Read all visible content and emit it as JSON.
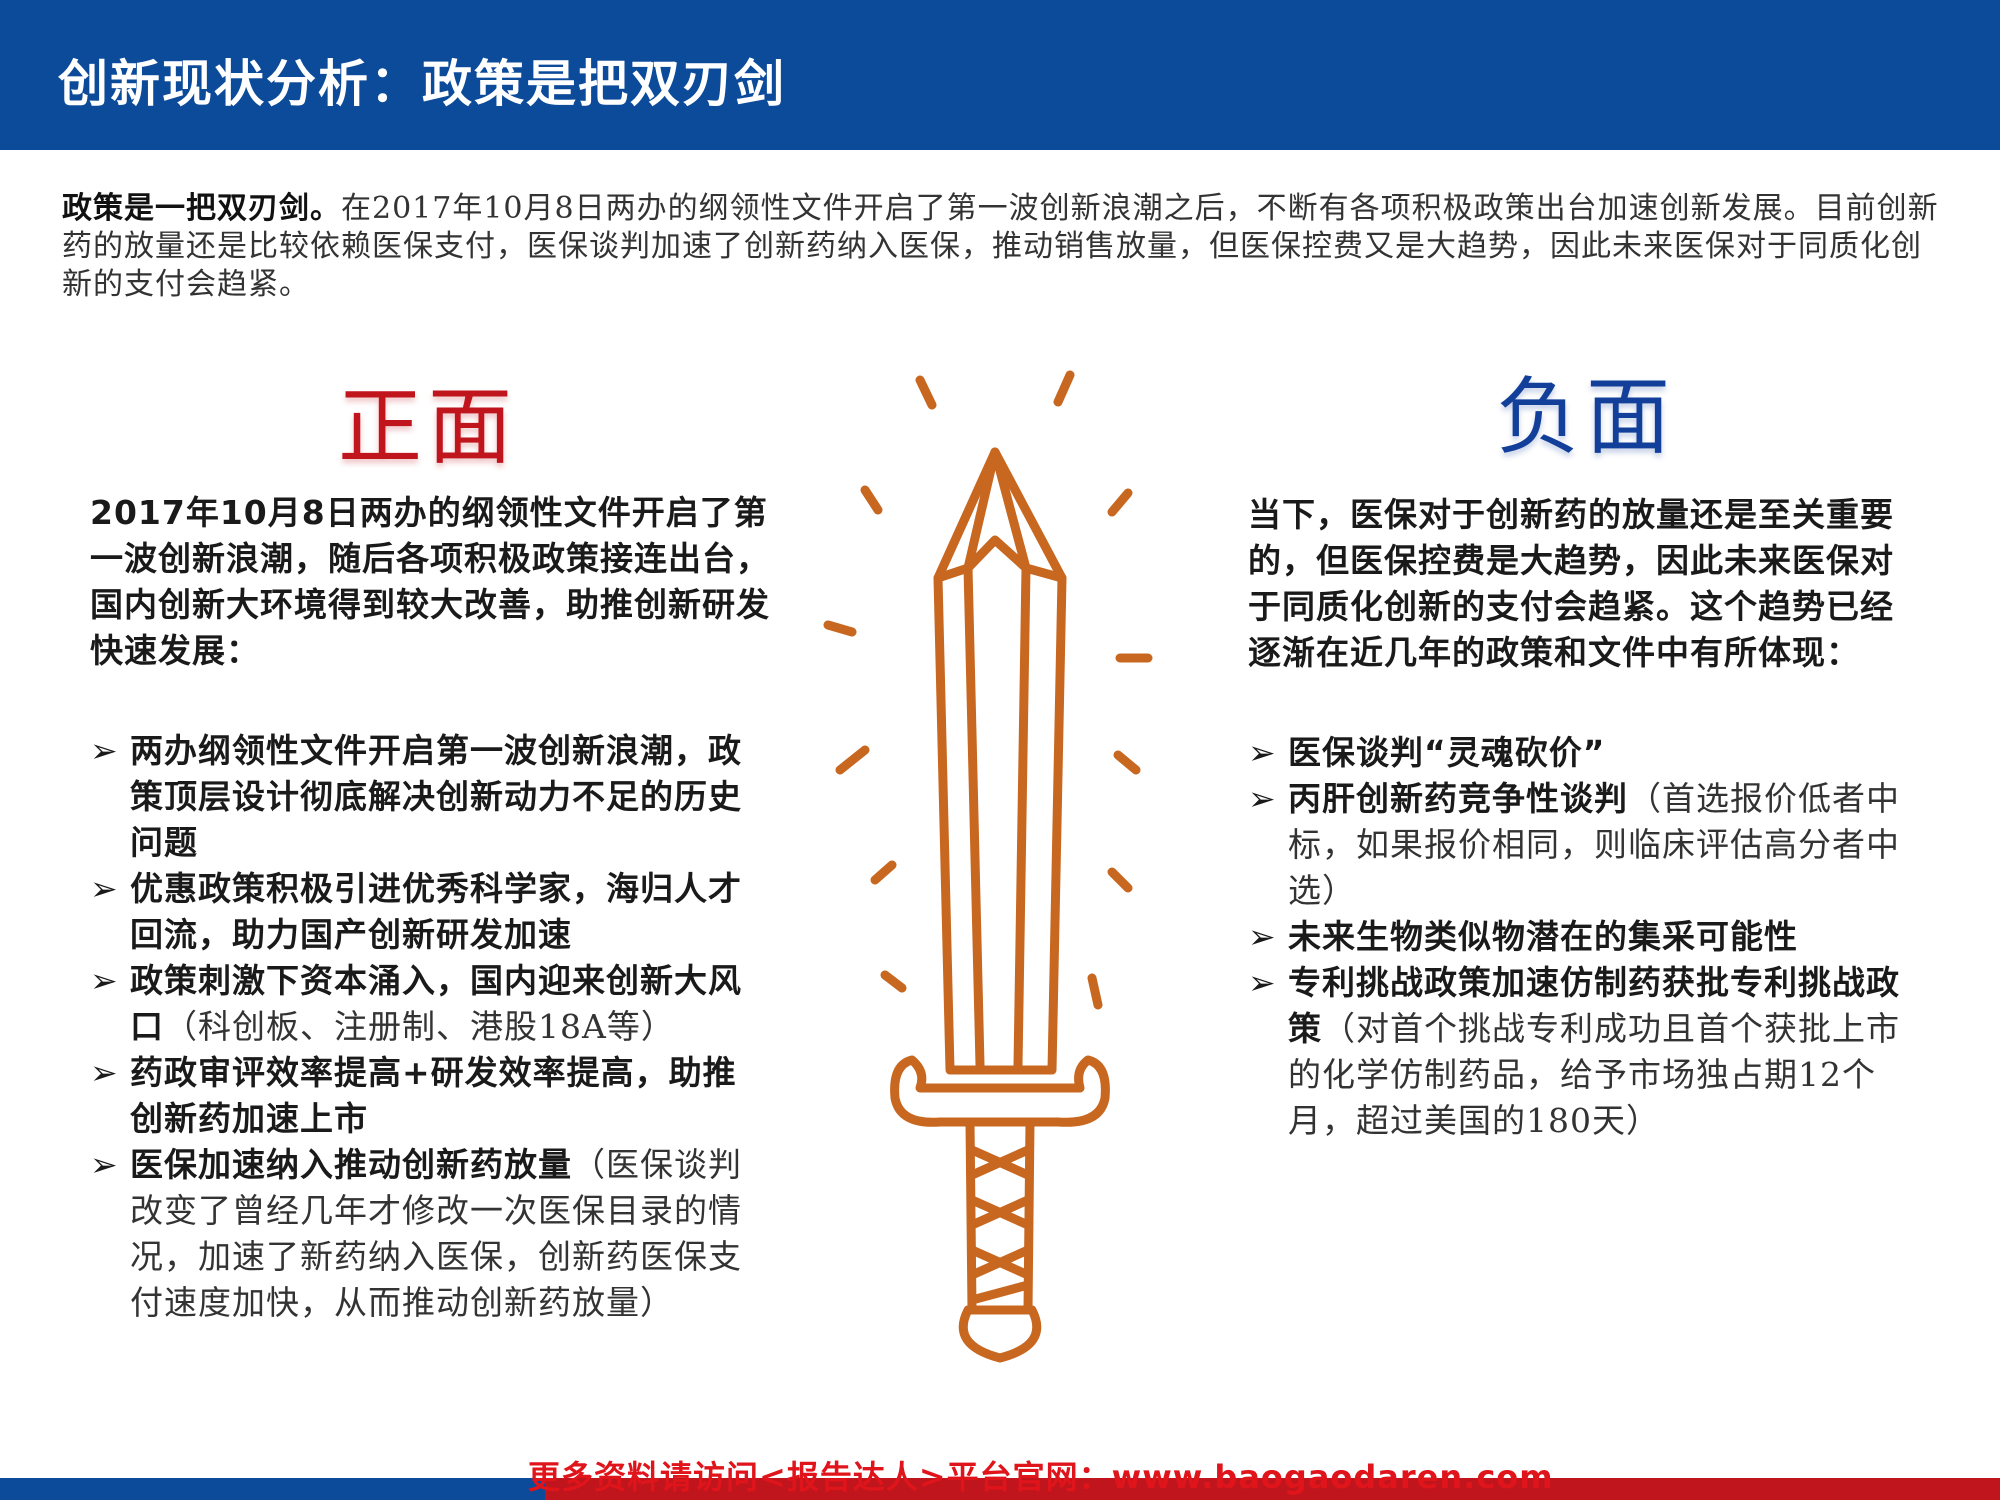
{
  "header": {
    "title": "创新现状分析：政策是把双刃剑"
  },
  "intro": {
    "lead": "政策是一把双刃剑。",
    "text": "在2017年10月8日两办的纲领性文件开启了第一波创新浪潮之后，不断有各项积极政策出台加速创新发展。目前创新药的放量还是比较依赖医保支付，医保谈判加速了创新药纳入医保，推动销售放量，但医保控费又是大趋势，因此未来医保对于同质化创新的支付会趋紧。"
  },
  "positive": {
    "heading": "正面",
    "summary": "2017年10月8日两办的纲领性文件开启了第一波创新浪潮，随后各项积极政策接连出台，国内创新大环境得到较大改善，助推创新研发快速发展：",
    "items": [
      {
        "bold": "两办纲领性文件开启第一波创新浪潮，政策顶层设计彻底解决创新动力不足的历史问题",
        "note": ""
      },
      {
        "bold": "优惠政策积极引进优秀科学家，海归人才回流，助力国产创新研发加速",
        "note": ""
      },
      {
        "bold": "政策刺激下资本涌入，国内迎来创新大风口",
        "note": "（科创板、注册制、港股18A等）"
      },
      {
        "bold": "药政审评效率提高+研发效率提高，助推创新药加速上市",
        "note": ""
      },
      {
        "bold": "医保加速纳入推动创新药放量",
        "note": "（医保谈判改变了曾经几年才修改一次医保目录的情况，加速了新药纳入医保，创新药医保支付速度加快，从而推动创新药放量）"
      }
    ]
  },
  "negative": {
    "heading": "负面",
    "summary": "当下，医保对于创新药的放量还是至关重要的，但医保控费是大趋势，因此未来医保对于同质化创新的支付会趋紧。这个趋势已经逐渐在近几年的政策和文件中有所体现：",
    "items": [
      {
        "bold": "医保谈判“灵魂砍价”",
        "note": ""
      },
      {
        "bold": "丙肝创新药竞争性谈判",
        "note": "（首选报价低者中标，如果报价相同，则临床评估高分者中选）"
      },
      {
        "bold": "未来生物类似物潜在的集采可能性",
        "note": ""
      },
      {
        "bold": "专利挑战政策加速仿制药获批专利挑战政策",
        "note": "（对首个挑战专利成功且首个获批上市的化学仿制药品，给予市场独占期12个月，超过美国的180天）"
      }
    ]
  },
  "bullet_symbol": "➢",
  "illustration": {
    "icon": "sword-icon",
    "color": "#c8671f"
  },
  "footer": {
    "text": "更多资料请访问<报告达人>平台官网：www.baogaodaren.com"
  },
  "colors": {
    "brand_blue": "#0c4a9a",
    "accent_red": "#c0151c",
    "negative_blue": "#123f9a"
  }
}
